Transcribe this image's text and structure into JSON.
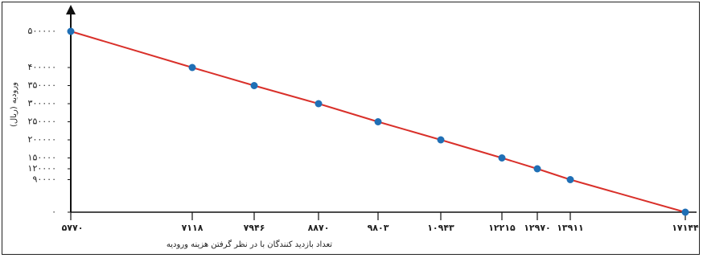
{
  "chart_data": {
    "type": "line",
    "title": "",
    "xlabel": "تعداد بازدید کنندگان با در نظر گرفتن هزینه ورودیه",
    "ylabel": "ورودیه (ریال)",
    "x_tick_labels": [
      "۵۷۷۰",
      "۷۱۱۸",
      "۷۹۴۶",
      "۸۸۷۰",
      "۹۸۰۳",
      "۱۰۹۴۳",
      "۱۲۲۱۵",
      "۱۲۹۷۰",
      "۱۳۹۱۱",
      "۱۷۱۴۴"
    ],
    "y_tick_labels": [
      "۵۰۰۰۰۰",
      "۴۰۰۰۰۰",
      "۳۵۰۰۰۰",
      "۳۰۰۰۰۰",
      "۲۵۰۰۰۰",
      "۲۰۰۰۰۰",
      "۱۵۰۰۰۰",
      "۱۲۰۰۰۰",
      "۹۰۰۰۰",
      "۰"
    ],
    "x": [
      5770,
      7118,
      7946,
      8870,
      9803,
      10943,
      12215,
      12970,
      13911,
      17144
    ],
    "y": [
      500000,
      400000,
      350000,
      300000,
      250000,
      200000,
      150000,
      120000,
      90000,
      0
    ],
    "line_color": "#d9302a",
    "point_color": "#1f6fb5",
    "grid": false,
    "legend": "none"
  }
}
